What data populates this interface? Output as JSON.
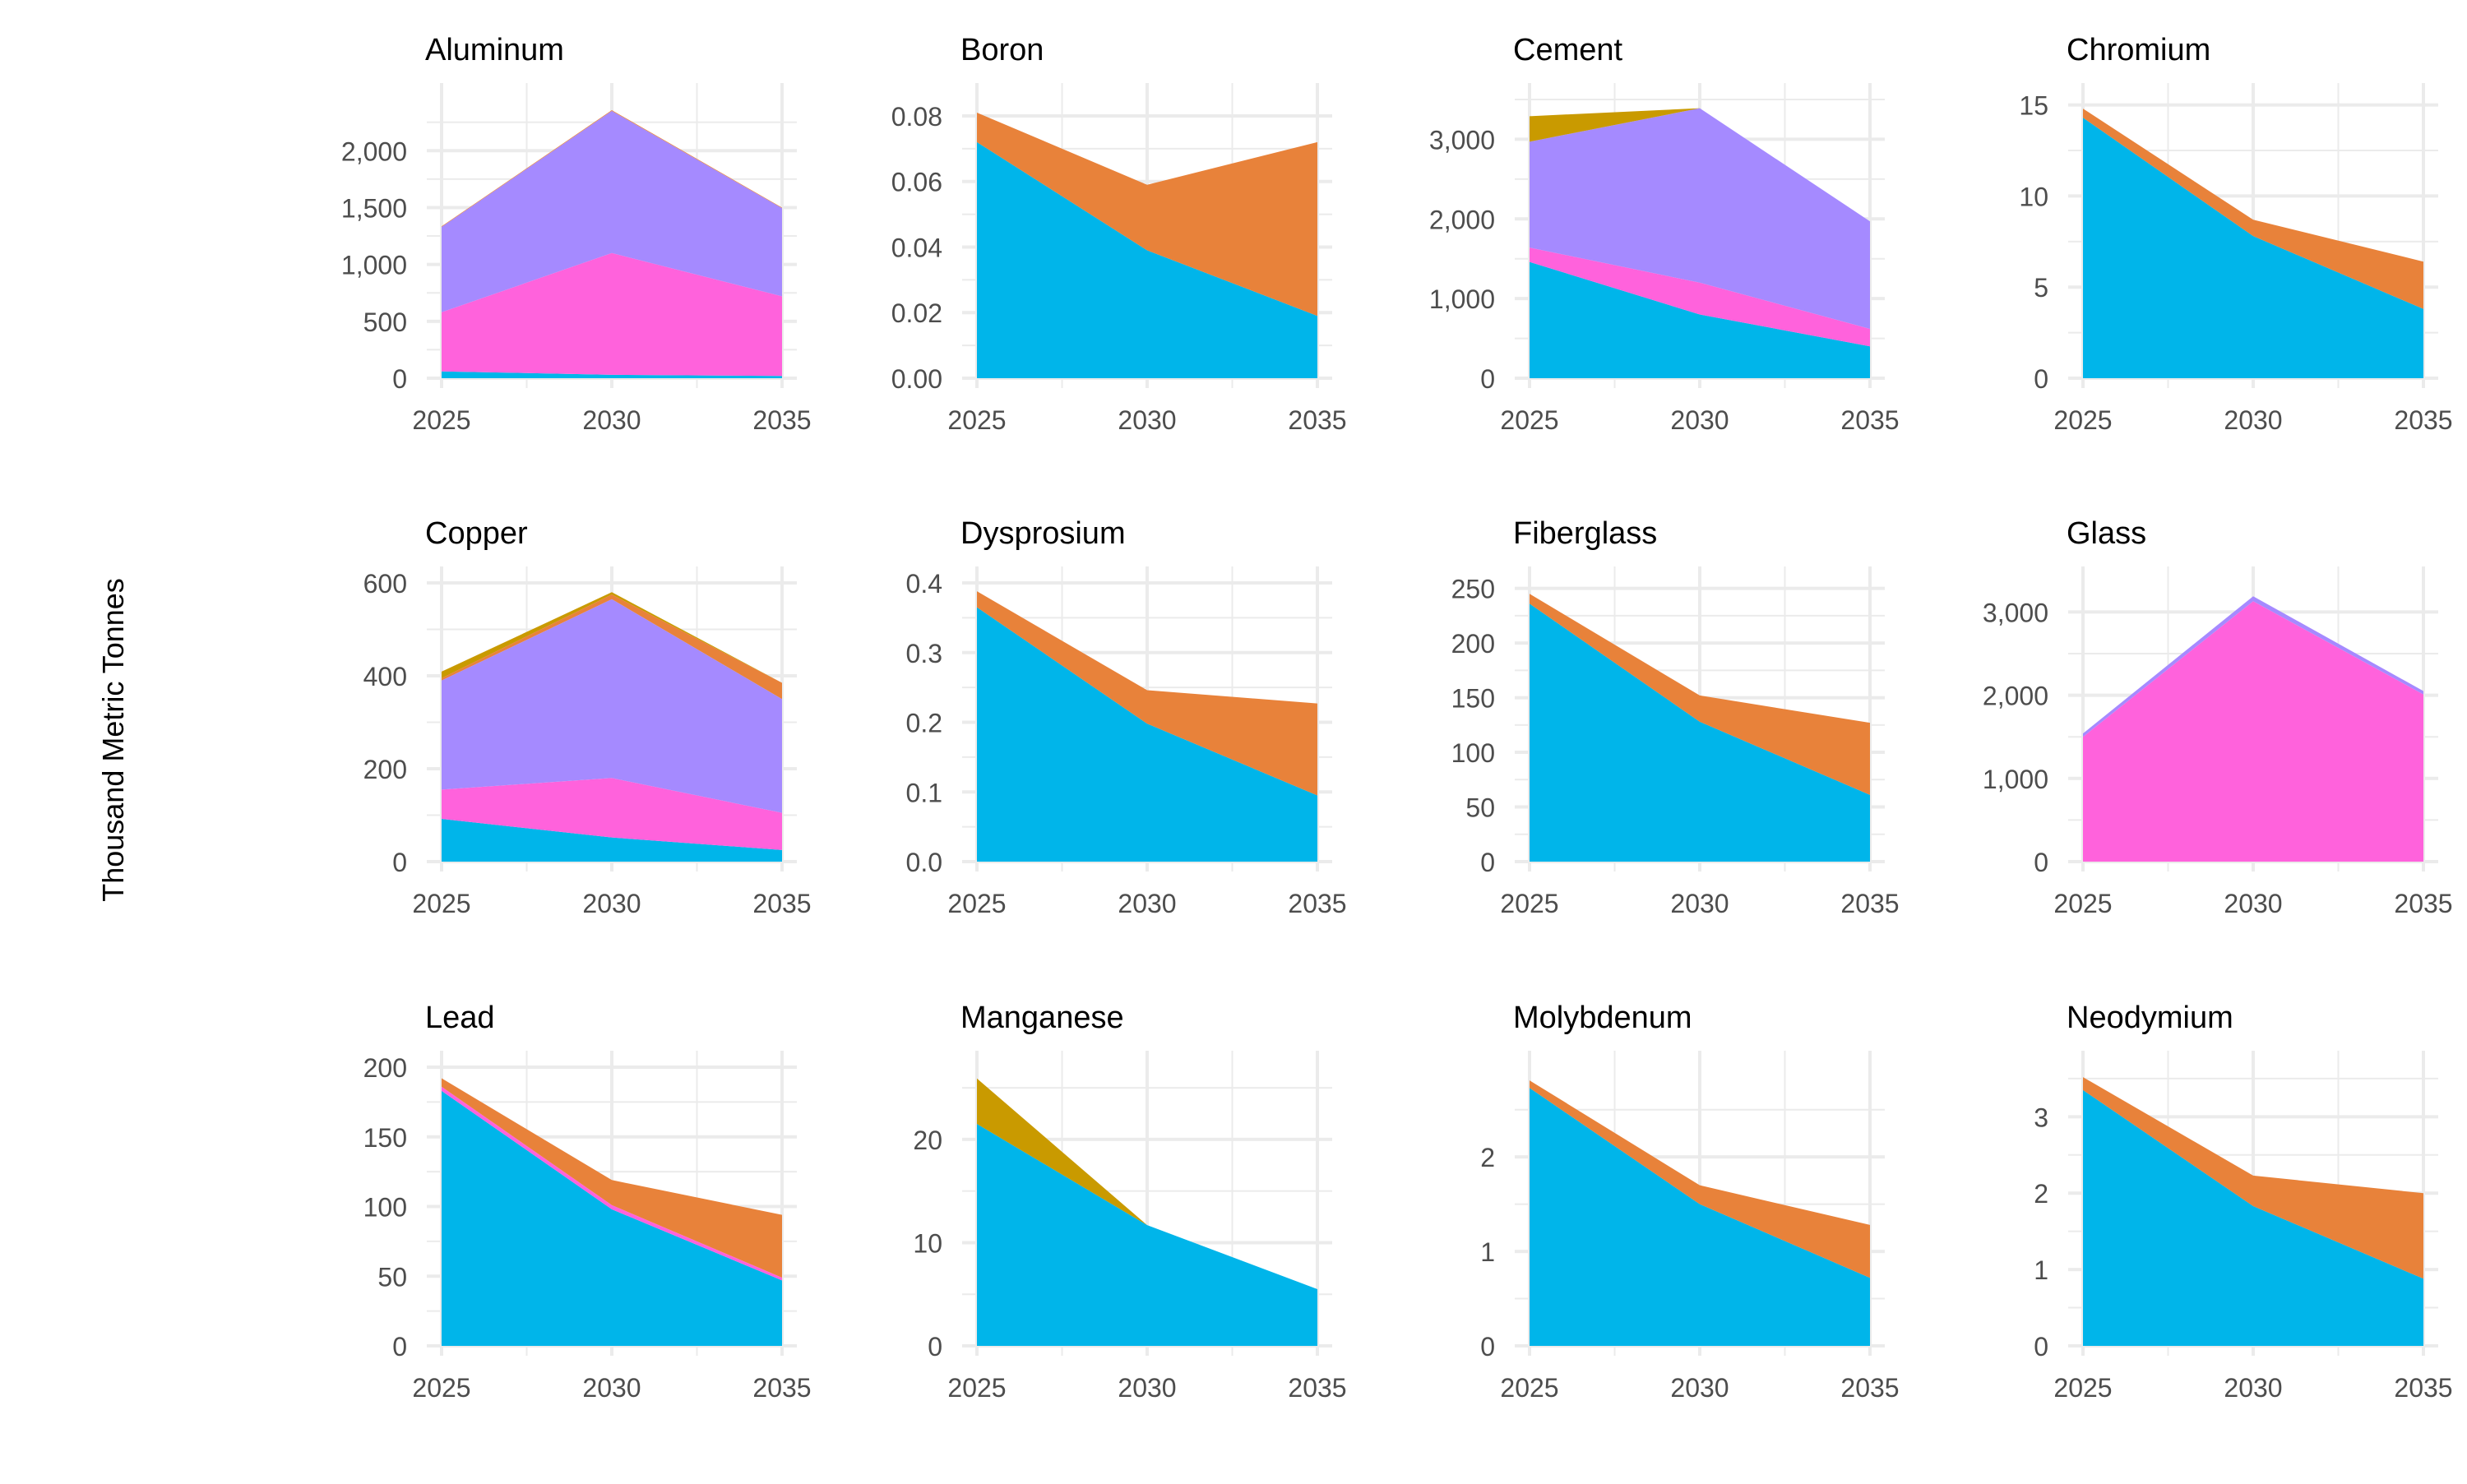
{
  "ylabel": "Thousand Metric Tonnes",
  "colors": {
    "layer1": "#00B5EA",
    "layer2": "#FF62DC",
    "layer3": "#A58AFF",
    "layer4": "#E8823A",
    "layer5": "#C99A00",
    "grid": "#EBEBEB",
    "tick_text": "#4D4D4D",
    "title_text": "#000000"
  },
  "chart_data": [
    {
      "type": "area",
      "stacked": true,
      "title": "Aluminum",
      "x": [
        2025,
        2030,
        2035
      ],
      "x_ticks": [
        "2025",
        "2030",
        "2035"
      ],
      "ylim": [
        0,
        2450
      ],
      "y_ticks": [
        0,
        500,
        1000,
        1500,
        2000
      ],
      "y_tick_labels": [
        "0",
        "500",
        "1,000",
        "1,500",
        "2,000"
      ],
      "series": [
        {
          "color": "layer1",
          "values": [
            60,
            30,
            20
          ]
        },
        {
          "color": "layer2",
          "values": [
            520,
            1070,
            700
          ]
        },
        {
          "color": "layer3",
          "values": [
            750,
            1250,
            775
          ]
        },
        {
          "color": "layer4",
          "values": [
            5,
            6,
            5
          ]
        }
      ]
    },
    {
      "type": "area",
      "stacked": true,
      "title": "Boron",
      "x": [
        2025,
        2030,
        2035
      ],
      "x_ticks": [
        "2025",
        "2030",
        "2035"
      ],
      "ylim": [
        0,
        0.085
      ],
      "y_ticks": [
        0,
        0.02,
        0.04,
        0.06,
        0.08
      ],
      "y_tick_labels": [
        "0.00",
        "0.02",
        "0.04",
        "0.06",
        "0.08"
      ],
      "series": [
        {
          "color": "layer1",
          "values": [
            0.072,
            0.039,
            0.019
          ]
        },
        {
          "color": "layer4",
          "values": [
            0.009,
            0.02,
            0.053
          ]
        }
      ]
    },
    {
      "type": "area",
      "stacked": true,
      "title": "Cement",
      "x": [
        2025,
        2030,
        2035
      ],
      "x_ticks": [
        "2025",
        "2030",
        "2035"
      ],
      "ylim": [
        0,
        3500
      ],
      "y_ticks": [
        0,
        1000,
        2000,
        3000
      ],
      "y_tick_labels": [
        "0",
        "1,000",
        "2,000",
        "3,000"
      ],
      "series": [
        {
          "color": "layer1",
          "values": [
            1460,
            800,
            400
          ]
        },
        {
          "color": "layer2",
          "values": [
            180,
            400,
            220
          ]
        },
        {
          "color": "layer3",
          "values": [
            1330,
            2190,
            1350
          ]
        },
        {
          "color": "layer5",
          "values": [
            320,
            0,
            0
          ]
        }
      ]
    },
    {
      "type": "area",
      "stacked": true,
      "title": "Chromium",
      "x": [
        2025,
        2030,
        2035
      ],
      "x_ticks": [
        "2025",
        "2030",
        "2035"
      ],
      "ylim": [
        0,
        15.3
      ],
      "y_ticks": [
        0,
        5,
        10,
        15
      ],
      "y_tick_labels": [
        "0",
        "5",
        "10",
        "15"
      ],
      "series": [
        {
          "color": "layer1",
          "values": [
            14.3,
            7.8,
            3.8
          ]
        },
        {
          "color": "layer4",
          "values": [
            0.5,
            0.9,
            2.6
          ]
        }
      ]
    },
    {
      "type": "area",
      "stacked": true,
      "title": "Copper",
      "x": [
        2025,
        2030,
        2035
      ],
      "x_ticks": [
        "2025",
        "2030",
        "2035"
      ],
      "ylim": [
        0,
        600
      ],
      "y_ticks": [
        0,
        200,
        400,
        600
      ],
      "y_tick_labels": [
        "0",
        "200",
        "400",
        "600"
      ],
      "series": [
        {
          "color": "layer1",
          "values": [
            92,
            52,
            25
          ]
        },
        {
          "color": "layer2",
          "values": [
            63,
            128,
            80
          ]
        },
        {
          "color": "layer3",
          "values": [
            235,
            385,
            245
          ]
        },
        {
          "color": "layer4",
          "values": [
            5,
            10,
            35
          ]
        },
        {
          "color": "layer5",
          "values": [
            14,
            5,
            0
          ]
        }
      ]
    },
    {
      "type": "area",
      "stacked": true,
      "title": "Dysprosium",
      "x": [
        2025,
        2030,
        2035
      ],
      "x_ticks": [
        "2025",
        "2030",
        "2035"
      ],
      "ylim": [
        0,
        0.4
      ],
      "y_ticks": [
        0,
        0.1,
        0.2,
        0.3,
        0.4
      ],
      "y_tick_labels": [
        "0.0",
        "0.1",
        "0.2",
        "0.3",
        "0.4"
      ],
      "series": [
        {
          "color": "layer1",
          "values": [
            0.365,
            0.198,
            0.095
          ]
        },
        {
          "color": "layer4",
          "values": [
            0.023,
            0.048,
            0.132
          ]
        }
      ]
    },
    {
      "type": "area",
      "stacked": true,
      "title": "Fiberglass",
      "x": [
        2025,
        2030,
        2035
      ],
      "x_ticks": [
        "2025",
        "2030",
        "2035"
      ],
      "ylim": [
        0,
        255
      ],
      "y_ticks": [
        0,
        50,
        100,
        150,
        200,
        250
      ],
      "y_tick_labels": [
        "0",
        "50",
        "100",
        "150",
        "200",
        "250"
      ],
      "series": [
        {
          "color": "layer1",
          "values": [
            236,
            128,
            61
          ]
        },
        {
          "color": "layer4",
          "values": [
            9,
            24,
            66
          ]
        }
      ]
    },
    {
      "type": "area",
      "stacked": true,
      "title": "Glass",
      "x": [
        2025,
        2030,
        2035
      ],
      "x_ticks": [
        "2025",
        "2030",
        "2035"
      ],
      "ylim": [
        0,
        3350
      ],
      "y_ticks": [
        0,
        1000,
        2000,
        3000
      ],
      "y_tick_labels": [
        "0",
        "1,000",
        "2,000",
        "3,000"
      ],
      "series": [
        {
          "color": "layer2",
          "values": [
            1500,
            3130,
            2010
          ]
        },
        {
          "color": "layer3",
          "values": [
            40,
            60,
            40
          ]
        }
      ]
    },
    {
      "type": "area",
      "stacked": true,
      "title": "Lead",
      "x": [
        2025,
        2030,
        2035
      ],
      "x_ticks": [
        "2025",
        "2030",
        "2035"
      ],
      "ylim": [
        0,
        200
      ],
      "y_ticks": [
        0,
        50,
        100,
        150,
        200
      ],
      "y_tick_labels": [
        "0",
        "50",
        "100",
        "150",
        "200"
      ],
      "series": [
        {
          "color": "layer1",
          "values": [
            183,
            98,
            47
          ]
        },
        {
          "color": "layer2",
          "values": [
            3,
            3,
            2
          ]
        },
        {
          "color": "layer4",
          "values": [
            6,
            18,
            45
          ]
        }
      ]
    },
    {
      "type": "area",
      "stacked": true,
      "title": "Manganese",
      "x": [
        2025,
        2030,
        2035
      ],
      "x_ticks": [
        "2025",
        "2030",
        "2035"
      ],
      "ylim": [
        0,
        27
      ],
      "y_ticks": [
        0,
        10,
        20
      ],
      "y_tick_labels": [
        "0",
        "10",
        "20"
      ],
      "series": [
        {
          "color": "layer1",
          "values": [
            21.5,
            11.7,
            5.5
          ]
        },
        {
          "color": "layer5",
          "values": [
            4.4,
            0,
            0
          ]
        }
      ]
    },
    {
      "type": "area",
      "stacked": true,
      "title": "Molybdenum",
      "x": [
        2025,
        2030,
        2035
      ],
      "x_ticks": [
        "2025",
        "2030",
        "2035"
      ],
      "ylim": [
        0,
        2.95
      ],
      "y_ticks": [
        0,
        1,
        2
      ],
      "y_tick_labels": [
        "0",
        "1",
        "2"
      ],
      "series": [
        {
          "color": "layer1",
          "values": [
            2.73,
            1.5,
            0.72
          ]
        },
        {
          "color": "layer4",
          "values": [
            0.08,
            0.2,
            0.56
          ]
        }
      ]
    },
    {
      "type": "area",
      "stacked": true,
      "title": "Neodymium",
      "x": [
        2025,
        2030,
        2035
      ],
      "x_ticks": [
        "2025",
        "2030",
        "2035"
      ],
      "ylim": [
        0,
        3.65
      ],
      "y_ticks": [
        0,
        1,
        2,
        3
      ],
      "y_tick_labels": [
        "0",
        "1",
        "2",
        "3"
      ],
      "series": [
        {
          "color": "layer1",
          "values": [
            3.35,
            1.83,
            0.88
          ]
        },
        {
          "color": "layer4",
          "values": [
            0.17,
            0.4,
            1.12
          ]
        }
      ]
    }
  ]
}
